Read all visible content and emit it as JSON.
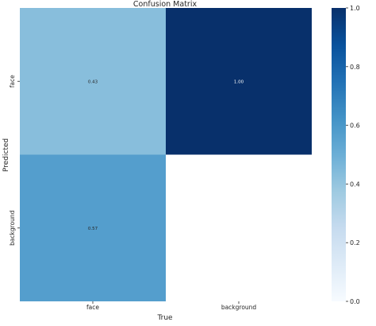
{
  "chart_data": {
    "type": "heatmap",
    "title": "Confusion Matrix",
    "xlabel": "True",
    "ylabel": "Predicted",
    "x_categories": [
      "face",
      "background"
    ],
    "y_categories": [
      "face",
      "background"
    ],
    "cells": [
      {
        "row": 0,
        "col": 0,
        "value": 0.43,
        "label": "0.43"
      },
      {
        "row": 0,
        "col": 1,
        "value": 1.0,
        "label": "1.00"
      },
      {
        "row": 1,
        "col": 0,
        "value": 0.57,
        "label": "0.57"
      },
      {
        "row": 1,
        "col": 1,
        "value": null,
        "label": ""
      }
    ],
    "colorbar": {
      "min": 0.0,
      "max": 1.0,
      "ticks": [
        {
          "value": 0.0,
          "label": "0.0"
        },
        {
          "value": 0.2,
          "label": "0.2"
        },
        {
          "value": 0.4,
          "label": "0.4"
        },
        {
          "value": 0.6,
          "label": "0.6"
        },
        {
          "value": 0.8,
          "label": "0.8"
        },
        {
          "value": 1.0,
          "label": "1.0"
        }
      ],
      "colormap": "Blues",
      "colors": [
        "#f7fbff",
        "#deebf7",
        "#c6dbef",
        "#9ecae1",
        "#6baed6",
        "#4292c6",
        "#2171b5",
        "#08519c",
        "#08306b"
      ]
    }
  }
}
